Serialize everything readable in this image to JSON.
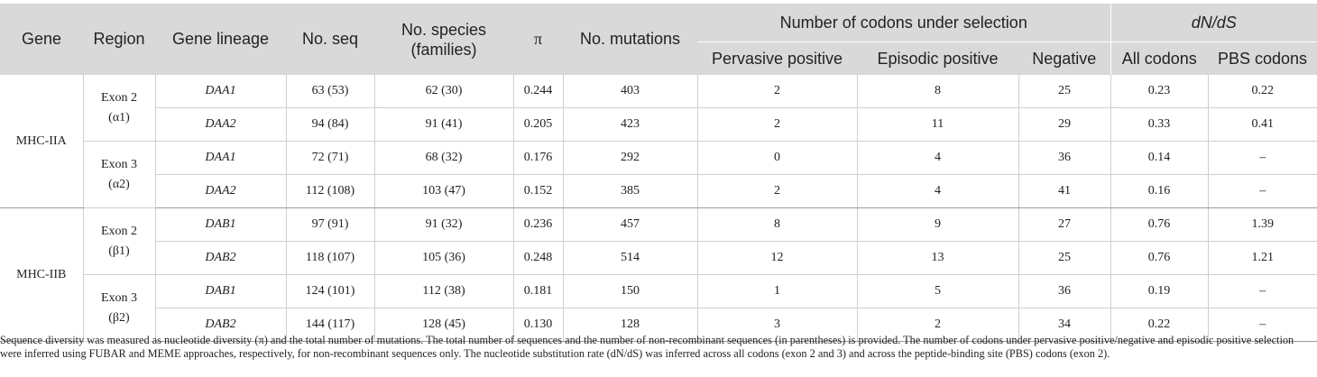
{
  "headers": {
    "gene": "Gene",
    "region": "Region",
    "lineage": "Gene lineage",
    "seq": "No. seq",
    "species": "No. species (families)",
    "pi": "π",
    "mutations": "No. mutations",
    "codons_group": "Number of codons under selection",
    "pervasive": "Pervasive positive",
    "episodic": "Episodic positive",
    "negative": "Negative",
    "dnds_group": "dN/dS",
    "all_codons": "All codons",
    "pbs_codons": "PBS codons"
  },
  "genes": [
    {
      "name": "MHC-IIA",
      "regions": [
        {
          "label": "Exon 2 (α1)",
          "rows": [
            {
              "lineage": "DAA1",
              "seq": "63 (53)",
              "species": "62 (30)",
              "pi": "0.244",
              "mutations": "403",
              "pervasive": "2",
              "episodic": "8",
              "negative": "25",
              "all": "0.23",
              "pbs": "0.22"
            },
            {
              "lineage": "DAA2",
              "seq": "94 (84)",
              "species": "91 (41)",
              "pi": "0.205",
              "mutations": "423",
              "pervasive": "2",
              "episodic": "11",
              "negative": "29",
              "all": "0.33",
              "pbs": "0.41"
            }
          ]
        },
        {
          "label": "Exon 3 (α2)",
          "rows": [
            {
              "lineage": "DAA1",
              "seq": "72 (71)",
              "species": "68 (32)",
              "pi": "0.176",
              "mutations": "292",
              "pervasive": "0",
              "episodic": "4",
              "negative": "36",
              "all": "0.14",
              "pbs": "–"
            },
            {
              "lineage": "DAA2",
              "seq": "112 (108)",
              "species": "103 (47)",
              "pi": "0.152",
              "mutations": "385",
              "pervasive": "2",
              "episodic": "4",
              "negative": "41",
              "all": "0.16",
              "pbs": "–"
            }
          ]
        }
      ]
    },
    {
      "name": "MHC-IIB",
      "regions": [
        {
          "label": "Exon 2 (β1)",
          "rows": [
            {
              "lineage": "DAB1",
              "seq": "97 (91)",
              "species": "91 (32)",
              "pi": "0.236",
              "mutations": "457",
              "pervasive": "8",
              "episodic": "9",
              "negative": "27",
              "all": "0.76",
              "pbs": "1.39"
            },
            {
              "lineage": "DAB2",
              "seq": "118 (107)",
              "species": "105 (36)",
              "pi": "0.248",
              "mutations": "514",
              "pervasive": "12",
              "episodic": "13",
              "negative": "25",
              "all": "0.76",
              "pbs": "1.21"
            }
          ]
        },
        {
          "label": "Exon 3 (β2)",
          "rows": [
            {
              "lineage": "DAB1",
              "seq": "124 (101)",
              "species": "112 (38)",
              "pi": "0.181",
              "mutations": "150",
              "pervasive": "1",
              "episodic": "5",
              "negative": "36",
              "all": "0.19",
              "pbs": "–"
            },
            {
              "lineage": "DAB2",
              "seq": "144 (117)",
              "species": "128 (45)",
              "pi": "0.130",
              "mutations": "128",
              "pervasive": "3",
              "episodic": "2",
              "negative": "34",
              "all": "0.22",
              "pbs": "–"
            }
          ]
        }
      ]
    }
  ],
  "footnote": "Sequence diversity was measured as nucleotide diversity (π) and the total number of mutations. The total number of sequences and the number of non-recombinant sequences (in parentheses) is provided. The number of codons under pervasive positive/negative and episodic positive selection were inferred using FUBAR and MEME approaches, respectively, for non-recombinant sequences only. The nucleotide substitution rate (dN/dS) was inferred across all codons (exon 2 and 3) and across the peptide-binding site (PBS) codons (exon 2)."
}
